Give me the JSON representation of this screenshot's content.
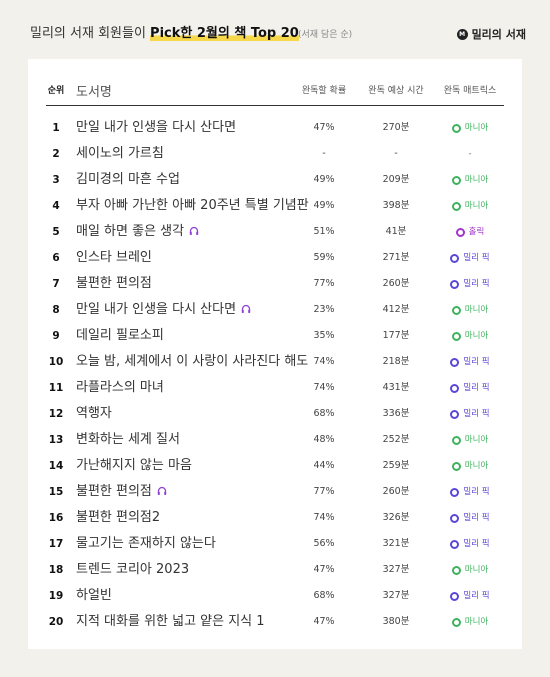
{
  "header": {
    "title_plain": "밀리의 서재 회원들이 ",
    "title_bold": "Pick한 2월의 책 Top 20",
    "subtitle": "(서재 담은 순)",
    "logo_text": "밀리의 서재",
    "logo_mark": "M"
  },
  "table": {
    "columns": {
      "rank": "순위",
      "title": "도서명",
      "rate": "완독할 확률",
      "time": "완독 예상 시간",
      "matrix": "완독 매트릭스"
    },
    "rows": [
      {
        "rank": "1",
        "title": "만일 내가 인생을 다시 산다면",
        "audio": false,
        "rate": "47%",
        "time": "270분",
        "matrix": "마니아",
        "matrix_color": "#3db35e"
      },
      {
        "rank": "2",
        "title": "세이노의 가르침",
        "audio": false,
        "rate": "-",
        "time": "-",
        "matrix": "-",
        "matrix_color": ""
      },
      {
        "rank": "3",
        "title": "김미경의 마흔 수업",
        "audio": false,
        "rate": "49%",
        "time": "209분",
        "matrix": "마니아",
        "matrix_color": "#3db35e"
      },
      {
        "rank": "4",
        "title": "부자 아빠 가난한 아빠 20주년 특별 기념판",
        "audio": false,
        "rate": "49%",
        "time": "398분",
        "matrix": "마니아",
        "matrix_color": "#3db35e"
      },
      {
        "rank": "5",
        "title": "매일 하면 좋은 생각",
        "audio": true,
        "rate": "51%",
        "time": "41분",
        "matrix": "홀릭",
        "matrix_color": "#a235c9"
      },
      {
        "rank": "6",
        "title": "인스타 브레인",
        "audio": false,
        "rate": "59%",
        "time": "271분",
        "matrix": "밀리 픽",
        "matrix_color": "#5b47d6"
      },
      {
        "rank": "7",
        "title": "불편한 편의점",
        "audio": false,
        "rate": "77%",
        "time": "260분",
        "matrix": "밀리 픽",
        "matrix_color": "#5b47d6"
      },
      {
        "rank": "8",
        "title": "만일 내가 인생을 다시 산다면",
        "audio": true,
        "rate": "23%",
        "time": "412분",
        "matrix": "마니아",
        "matrix_color": "#3db35e"
      },
      {
        "rank": "9",
        "title": "데일리 필로소피",
        "audio": false,
        "rate": "35%",
        "time": "177분",
        "matrix": "마니아",
        "matrix_color": "#3db35e"
      },
      {
        "rank": "10",
        "title": "오늘 밤, 세계에서 이 사랑이 사라진다 해도",
        "audio": false,
        "rate": "74%",
        "time": "218분",
        "matrix": "밀리 픽",
        "matrix_color": "#5b47d6"
      },
      {
        "rank": "11",
        "title": "라플라스의 마녀",
        "audio": false,
        "rate": "74%",
        "time": "431분",
        "matrix": "밀리 픽",
        "matrix_color": "#5b47d6"
      },
      {
        "rank": "12",
        "title": "역행자",
        "audio": false,
        "rate": "68%",
        "time": "336분",
        "matrix": "밀리 픽",
        "matrix_color": "#5b47d6"
      },
      {
        "rank": "13",
        "title": "변화하는 세계 질서",
        "audio": false,
        "rate": "48%",
        "time": "252분",
        "matrix": "마니아",
        "matrix_color": "#3db35e"
      },
      {
        "rank": "14",
        "title": "가난해지지 않는 마음",
        "audio": false,
        "rate": "44%",
        "time": "259분",
        "matrix": "마니아",
        "matrix_color": "#3db35e"
      },
      {
        "rank": "15",
        "title": "불편한 편의점",
        "audio": true,
        "rate": "77%",
        "time": "260분",
        "matrix": "밀리 픽",
        "matrix_color": "#5b47d6"
      },
      {
        "rank": "16",
        "title": "불편한 편의점2",
        "audio": false,
        "rate": "74%",
        "time": "326분",
        "matrix": "밀리 픽",
        "matrix_color": "#5b47d6"
      },
      {
        "rank": "17",
        "title": "물고기는 존재하지 않는다",
        "audio": false,
        "rate": "56%",
        "time": "321분",
        "matrix": "밀리 픽",
        "matrix_color": "#5b47d6"
      },
      {
        "rank": "18",
        "title": "트렌드 코리아 2023",
        "audio": false,
        "rate": "47%",
        "time": "327분",
        "matrix": "마니아",
        "matrix_color": "#3db35e"
      },
      {
        "rank": "19",
        "title": "하얼빈",
        "audio": false,
        "rate": "68%",
        "time": "327분",
        "matrix": "밀리 픽",
        "matrix_color": "#5b47d6"
      },
      {
        "rank": "20",
        "title": "지적 대화를 위한 넓고 얕은 지식 1",
        "audio": false,
        "rate": "47%",
        "time": "380분",
        "matrix": "마니아",
        "matrix_color": "#3db35e"
      }
    ]
  }
}
